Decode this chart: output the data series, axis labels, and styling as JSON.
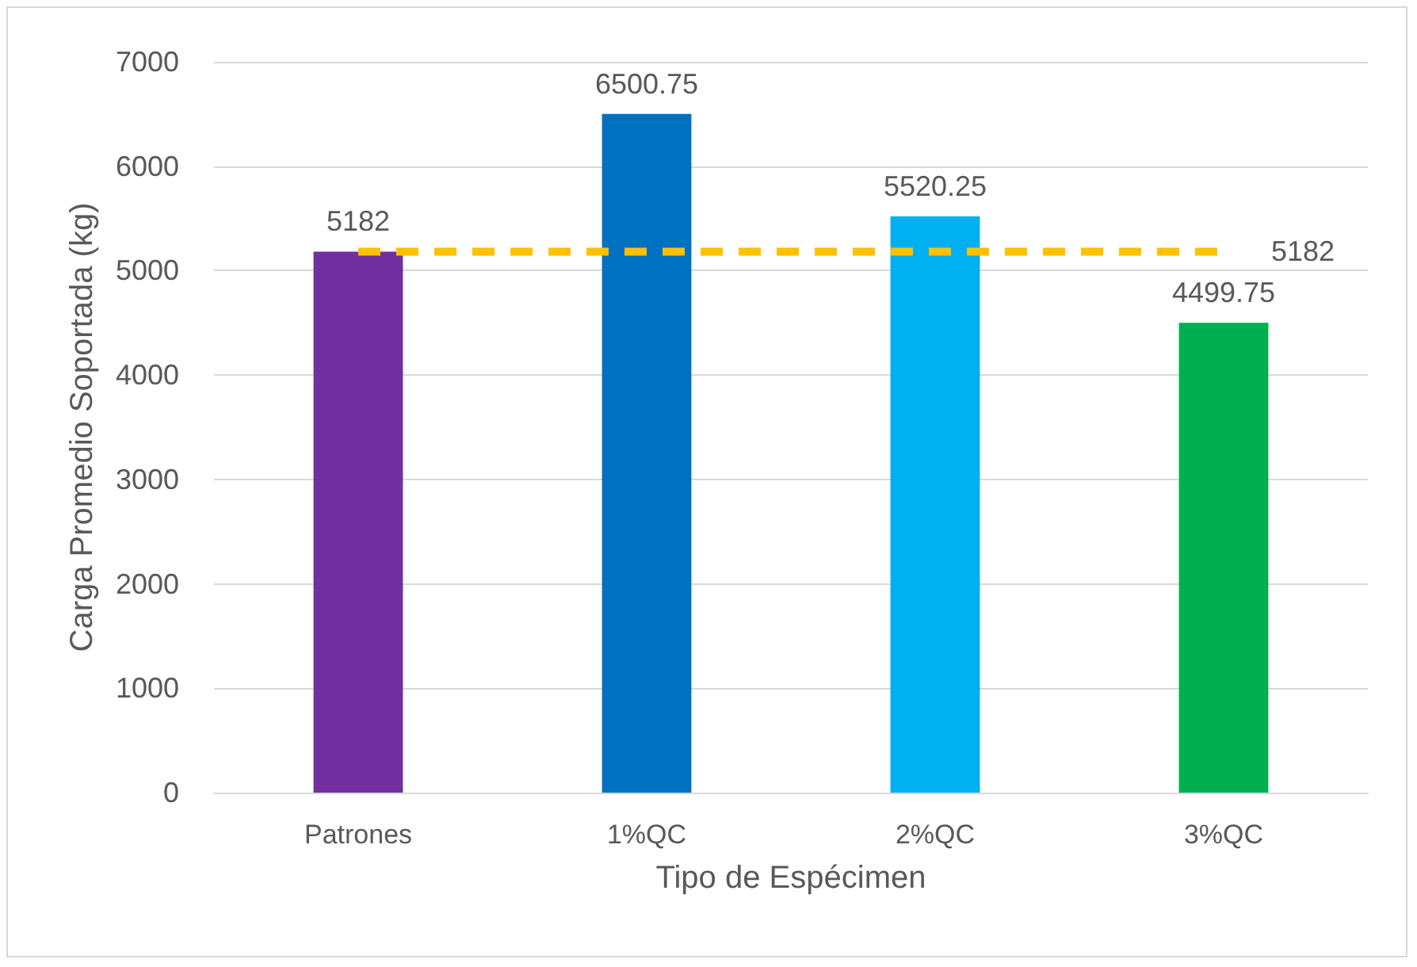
{
  "chart_data": {
    "type": "bar",
    "xlabel": "Tipo de Espécimen",
    "ylabel": "Carga Promedio Soportada (kg)",
    "categories": [
      "Patrones",
      "1%QC",
      "2%QC",
      "3%QC"
    ],
    "ylim": [
      0,
      7000
    ],
    "yticks": [
      0,
      1000,
      2000,
      3000,
      4000,
      5000,
      6000,
      7000
    ],
    "grid": "y",
    "line_style": "dashed",
    "marker": "none",
    "series": [
      {
        "colors": [
          "#7030a0",
          "#0070c0",
          "#00b0f0",
          "#00b050"
        ],
        "values": [
          5182,
          6500.75,
          5520.25,
          4499.75
        ],
        "value_labels": [
          "5182",
          "6500.75",
          "5520.25",
          "4499.75"
        ]
      },
      {
        "type": "line",
        "color": "#ffc000",
        "values": [
          5182,
          5182,
          5182,
          5182
        ],
        "value_labels": [
          null,
          null,
          null,
          "5182"
        ]
      }
    ]
  }
}
